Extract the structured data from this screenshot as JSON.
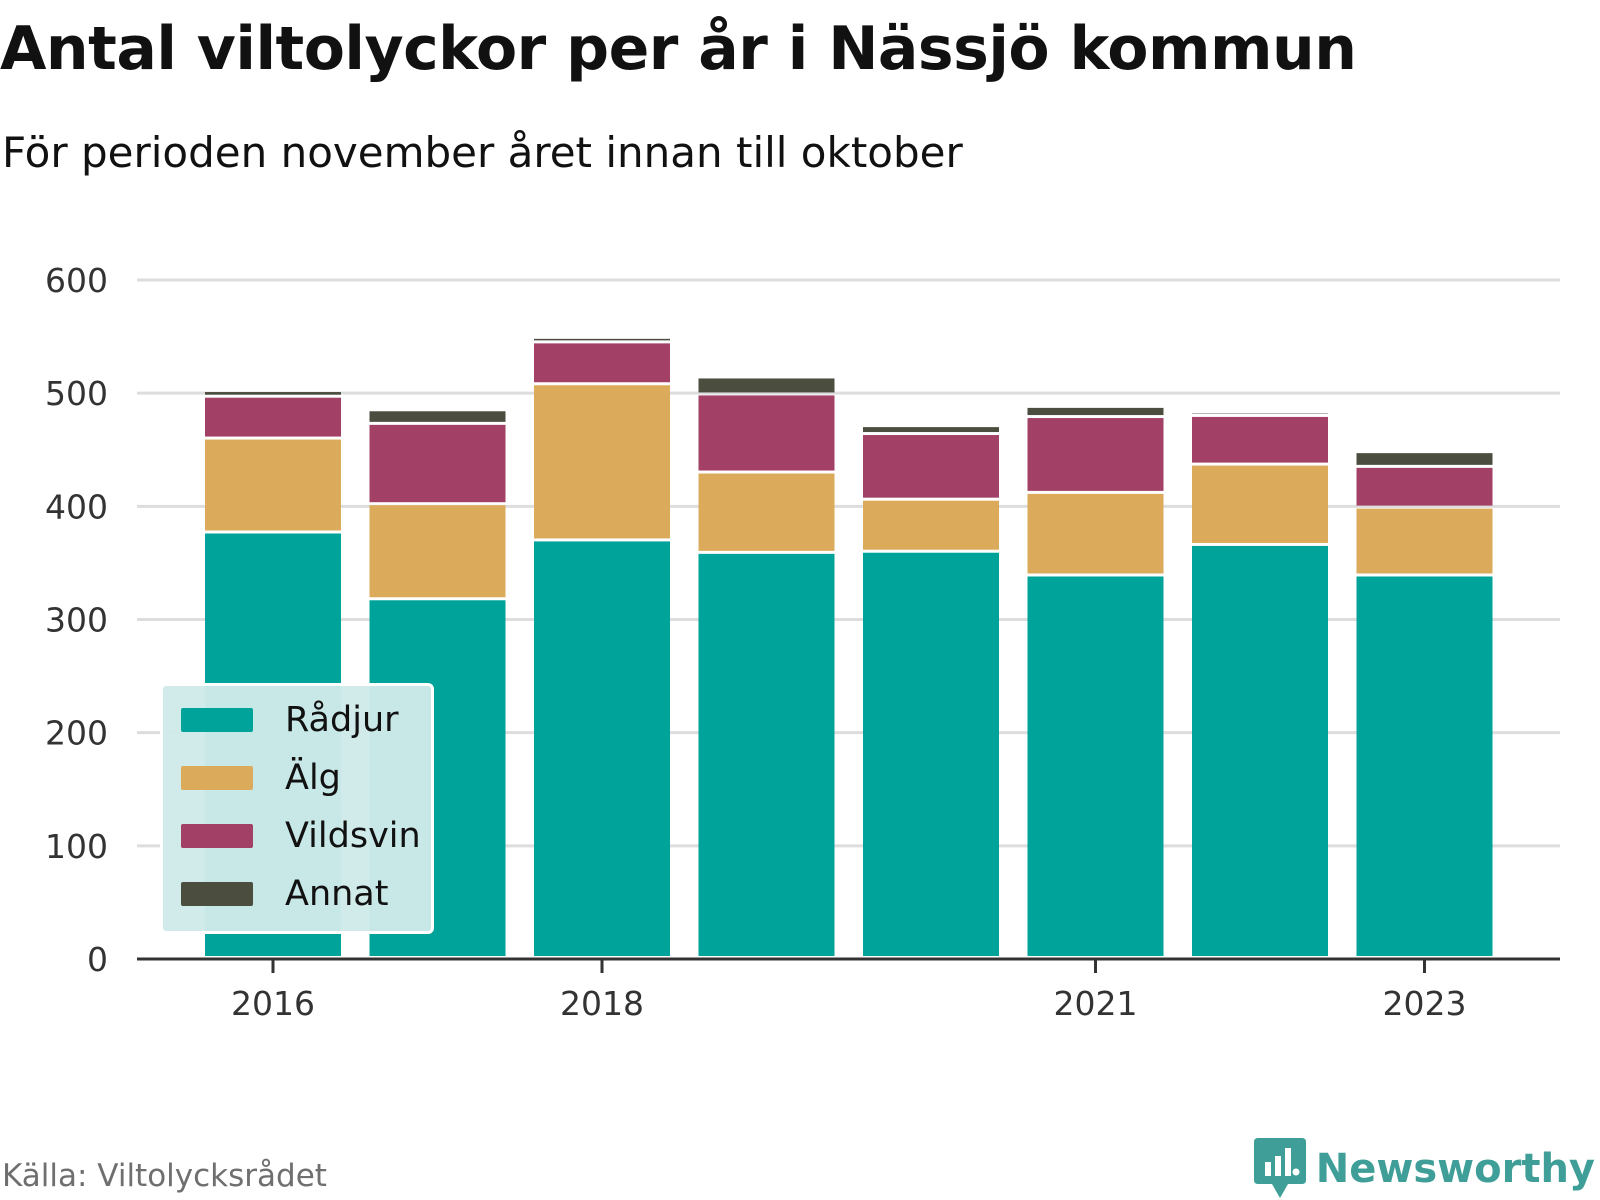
{
  "title": "Antal viltolyckor per år i Nässjö kommun",
  "subtitle": "För perioden november året innan till oktober",
  "source": "Källa: Viltolycksrådet",
  "brand": "Newsworthy",
  "colors": {
    "Rådjur": "#00a39a",
    "Älg": "#dbab5b",
    "Vildsvin": "#a24066",
    "Annat": "#4b4d3f",
    "grid": "#dddddd",
    "axis": "#333333",
    "brand": "#3f9e97"
  },
  "chart_data": {
    "type": "bar",
    "stacked": true,
    "categories": [
      "2016",
      "2017",
      "2018",
      "2019",
      "2020",
      "2021",
      "2022",
      "2023"
    ],
    "x_tick_labels": [
      "2016",
      "",
      "2018",
      "",
      "",
      "2021",
      "",
      "2023"
    ],
    "series": [
      {
        "name": "Rådjur",
        "values": [
          376,
          317,
          369,
          358,
          359,
          338,
          365,
          338
        ]
      },
      {
        "name": "Älg",
        "values": [
          83,
          84,
          138,
          71,
          46,
          73,
          71,
          60
        ]
      },
      {
        "name": "Vildsvin",
        "values": [
          37,
          71,
          37,
          69,
          58,
          67,
          43,
          36
        ]
      },
      {
        "name": "Annat",
        "values": [
          5,
          12,
          4,
          15,
          7,
          9,
          3,
          13
        ]
      }
    ],
    "ylim": [
      0,
      600
    ],
    "yticks": [
      0,
      100,
      200,
      300,
      400,
      500,
      600
    ],
    "grid": true,
    "legend_position": "bottom-left"
  }
}
